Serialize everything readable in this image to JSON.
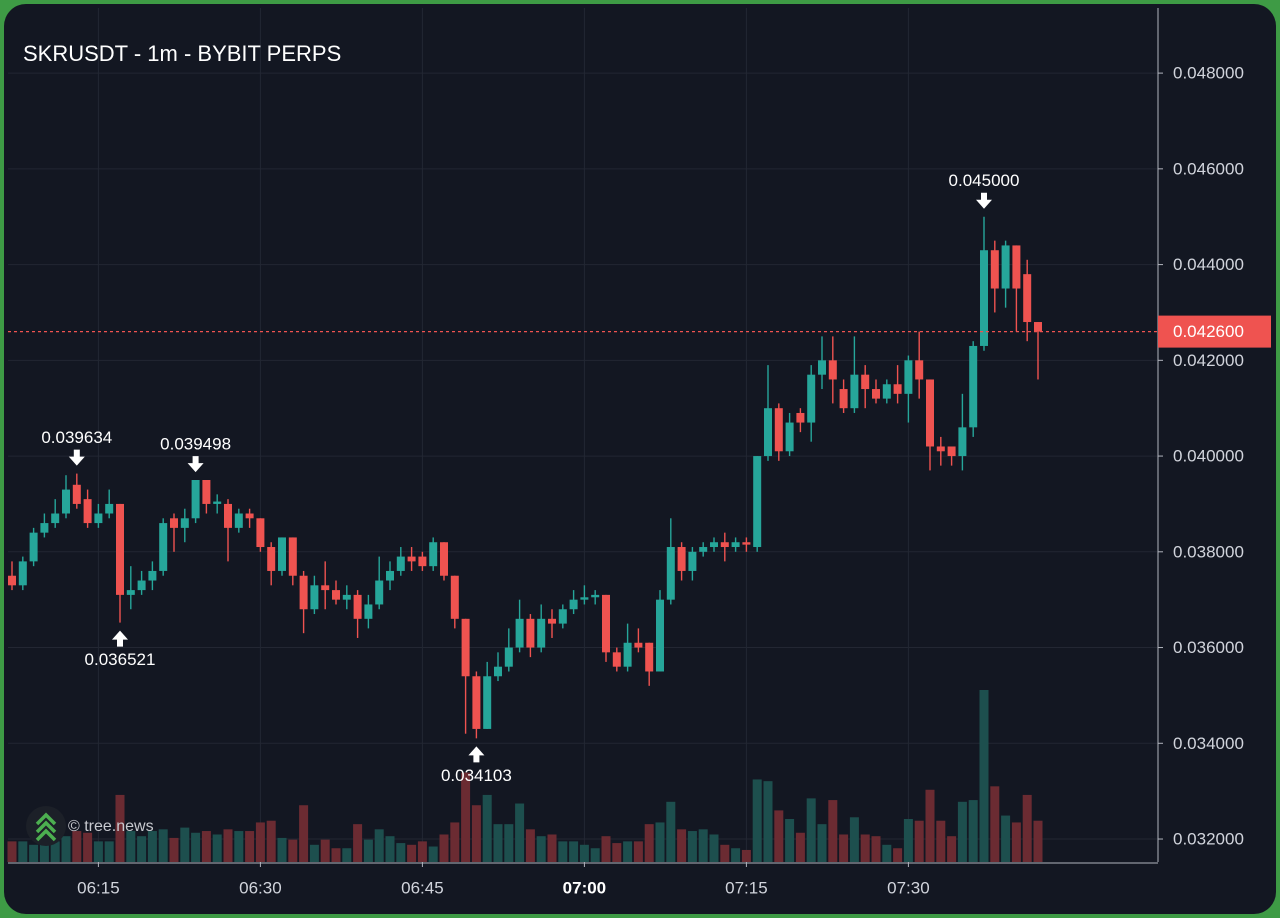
{
  "chart_data": {
    "type": "candlestick",
    "title": "SKRUSDT - 1m - BYBIT PERPS",
    "watermark": "© tree.news",
    "grid": true,
    "up_color": "#26a69a",
    "down_color": "#ef5350",
    "volume_up_color": "#1d4f4e",
    "volume_down_color": "#6b2b32",
    "x": [
      "06:07",
      "06:08",
      "06:09",
      "06:10",
      "06:11",
      "06:12",
      "06:13",
      "06:14",
      "06:15",
      "06:16",
      "06:17",
      "06:18",
      "06:19",
      "06:20",
      "06:21",
      "06:22",
      "06:23",
      "06:24",
      "06:25",
      "06:26",
      "06:27",
      "06:28",
      "06:29",
      "06:30",
      "06:31",
      "06:32",
      "06:33",
      "06:34",
      "06:35",
      "06:36",
      "06:37",
      "06:38",
      "06:39",
      "06:40",
      "06:41",
      "06:42",
      "06:43",
      "06:44",
      "06:45",
      "06:46",
      "06:47",
      "06:48",
      "06:49",
      "06:50",
      "06:51",
      "06:52",
      "06:53",
      "06:54",
      "06:55",
      "06:56",
      "06:57",
      "06:58",
      "06:59",
      "07:00",
      "07:01",
      "07:02",
      "07:03",
      "07:04",
      "07:05",
      "07:06",
      "07:07",
      "07:08",
      "07:09",
      "07:10",
      "07:11",
      "07:12",
      "07:13",
      "07:14",
      "07:15",
      "07:16",
      "07:17",
      "07:18",
      "07:19",
      "07:20",
      "07:21",
      "07:22",
      "07:23",
      "07:24",
      "07:25",
      "07:26",
      "07:27",
      "07:28",
      "07:29",
      "07:30",
      "07:31",
      "07:32",
      "07:33",
      "07:34",
      "07:35",
      "07:36",
      "07:37",
      "07:38",
      "07:39",
      "07:40",
      "07:41",
      "07:42"
    ],
    "open": [
      0.0375,
      0.0373,
      0.0378,
      0.0384,
      0.0386,
      0.0388,
      0.0394,
      0.0391,
      0.0386,
      0.0388,
      0.039,
      0.0371,
      0.0372,
      0.0374,
      0.0376,
      0.0387,
      0.0385,
      0.0387,
      0.0395,
      0.039,
      0.039,
      0.0385,
      0.0388,
      0.0387,
      0.0381,
      0.0376,
      0.0383,
      0.0375,
      0.0368,
      0.0373,
      0.0372,
      0.037,
      0.0371,
      0.0366,
      0.0369,
      0.0374,
      0.0376,
      0.0379,
      0.0379,
      0.0377,
      0.0382,
      0.0375,
      0.0366,
      0.0354,
      0.0343,
      0.0354,
      0.0356,
      0.036,
      0.0366,
      0.036,
      0.0366,
      0.0365,
      0.0368,
      0.037,
      0.03705,
      0.0371,
      0.0359,
      0.0356,
      0.0361,
      0.0361,
      0.0355,
      0.037,
      0.0381,
      0.0376,
      0.038,
      0.0381,
      0.0382,
      0.0381,
      0.0382,
      0.0381,
      0.04,
      0.041,
      0.0401,
      0.0409,
      0.0407,
      0.0417,
      0.042,
      0.0414,
      0.041,
      0.0417,
      0.0414,
      0.0412,
      0.0415,
      0.0413,
      0.042,
      0.0416,
      0.0402,
      0.0402,
      0.04,
      0.0406,
      0.0423,
      0.0443,
      0.0435,
      0.0444,
      0.0438,
      0.0428
    ],
    "high": [
      0.0378,
      0.0379,
      0.0385,
      0.0388,
      0.0391,
      0.0396,
      0.039634,
      0.0393,
      0.039,
      0.0393,
      0.039,
      0.0377,
      0.0376,
      0.0378,
      0.0387,
      0.0388,
      0.0389,
      0.039498,
      0.0395,
      0.0392,
      0.0391,
      0.0389,
      0.0389,
      0.0387,
      0.0382,
      0.0383,
      0.0383,
      0.0376,
      0.0375,
      0.0378,
      0.0374,
      0.0373,
      0.0372,
      0.0371,
      0.0379,
      0.0378,
      0.0381,
      0.0381,
      0.038,
      0.0383,
      0.0382,
      0.0375,
      0.0366,
      0.0355,
      0.0357,
      0.0359,
      0.0364,
      0.037,
      0.0367,
      0.0369,
      0.0368,
      0.0369,
      0.0372,
      0.0373,
      0.0372,
      0.0371,
      0.036,
      0.0365,
      0.0364,
      0.0361,
      0.0372,
      0.0387,
      0.0382,
      0.0381,
      0.0382,
      0.0383,
      0.0384,
      0.0383,
      0.0383,
      0.04,
      0.0419,
      0.0411,
      0.0409,
      0.041,
      0.0419,
      0.0425,
      0.0425,
      0.0416,
      0.0425,
      0.0419,
      0.0416,
      0.0416,
      0.0419,
      0.0421,
      0.0426,
      0.0416,
      0.0404,
      0.0402,
      0.0413,
      0.0424,
      0.045,
      0.0445,
      0.0445,
      0.0444,
      0.0441,
      0.0428
    ],
    "low": [
      0.0372,
      0.0372,
      0.0377,
      0.0383,
      0.0385,
      0.0387,
      0.0389,
      0.0385,
      0.0385,
      0.0387,
      0.036521,
      0.0368,
      0.0371,
      0.0372,
      0.0375,
      0.038,
      0.0382,
      0.0386,
      0.0388,
      0.0388,
      0.0378,
      0.0384,
      0.0385,
      0.038,
      0.0373,
      0.0375,
      0.0373,
      0.0363,
      0.0367,
      0.0368,
      0.0369,
      0.0368,
      0.0362,
      0.0364,
      0.0368,
      0.0372,
      0.0375,
      0.0376,
      0.0376,
      0.0376,
      0.0374,
      0.0364,
      0.0342,
      0.034103,
      0.0343,
      0.0353,
      0.0355,
      0.0359,
      0.0358,
      0.0359,
      0.0362,
      0.0364,
      0.0367,
      0.0369,
      0.0369,
      0.0357,
      0.0355,
      0.0355,
      0.0359,
      0.0352,
      0.0355,
      0.0369,
      0.0374,
      0.0374,
      0.0379,
      0.038,
      0.0378,
      0.038,
      0.038,
      0.038,
      0.0399,
      0.0399,
      0.04,
      0.0405,
      0.0403,
      0.0414,
      0.0411,
      0.0409,
      0.0409,
      0.041,
      0.0411,
      0.0411,
      0.0411,
      0.0407,
      0.0412,
      0.0397,
      0.0398,
      0.0398,
      0.0397,
      0.0404,
      0.0422,
      0.043,
      0.0431,
      0.0426,
      0.0424,
      0.0416
    ],
    "close": [
      0.0373,
      0.0378,
      0.0384,
      0.0386,
      0.0388,
      0.0393,
      0.039,
      0.0386,
      0.0388,
      0.039,
      0.0371,
      0.0372,
      0.0374,
      0.0376,
      0.0386,
      0.0385,
      0.0387,
      0.0395,
      0.039,
      0.03905,
      0.0385,
      0.0388,
      0.0387,
      0.0381,
      0.0376,
      0.0383,
      0.0375,
      0.0368,
      0.0373,
      0.0372,
      0.037,
      0.0371,
      0.0366,
      0.0369,
      0.0374,
      0.0376,
      0.0379,
      0.0378,
      0.0377,
      0.0382,
      0.0375,
      0.0366,
      0.0354,
      0.0343,
      0.0354,
      0.0356,
      0.036,
      0.0366,
      0.036,
      0.0366,
      0.0365,
      0.0368,
      0.037,
      0.03705,
      0.0371,
      0.0359,
      0.0356,
      0.0361,
      0.036,
      0.0355,
      0.037,
      0.0381,
      0.0376,
      0.038,
      0.0381,
      0.0382,
      0.0381,
      0.0382,
      0.03815,
      0.04,
      0.041,
      0.0401,
      0.0407,
      0.0407,
      0.0417,
      0.042,
      0.0416,
      0.041,
      0.0417,
      0.0414,
      0.0412,
      0.0415,
      0.0413,
      0.042,
      0.0416,
      0.0402,
      0.0401,
      0.04,
      0.0406,
      0.0423,
      0.0443,
      0.0435,
      0.0444,
      0.0435,
      0.0428,
      0.0426
    ],
    "volume": [
      12,
      12,
      10,
      10,
      12,
      15,
      18,
      17,
      12,
      12,
      39,
      18,
      15,
      18,
      19,
      14,
      20,
      17,
      18,
      16,
      19,
      18,
      18,
      23,
      24,
      14,
      13,
      33,
      10,
      13,
      8,
      8,
      22,
      13,
      19,
      15,
      11,
      10,
      12,
      9,
      16,
      23,
      52,
      33,
      39,
      22,
      22,
      34,
      19,
      15,
      16,
      12,
      12,
      10,
      8,
      15,
      11,
      12,
      12,
      22,
      23,
      35,
      19,
      18,
      19,
      16,
      10,
      8,
      7,
      48,
      47,
      30,
      25,
      17,
      37,
      22,
      36,
      16,
      26,
      16,
      15,
      10,
      8,
      25,
      24,
      42,
      24,
      15,
      35,
      36,
      100,
      44,
      27,
      23,
      39,
      24
    ],
    "vlim": [
      0,
      100
    ],
    "ylim": [
      0.03152,
      0.04936
    ],
    "yticks": [
      {
        "value": 0.032,
        "label": "0.032000"
      },
      {
        "value": 0.034,
        "label": "0.034000"
      },
      {
        "value": 0.036,
        "label": "0.036000"
      },
      {
        "value": 0.038,
        "label": "0.038000"
      },
      {
        "value": 0.04,
        "label": "0.040000"
      },
      {
        "value": 0.042,
        "label": "0.042000"
      },
      {
        "value": 0.044,
        "label": "0.044000"
      },
      {
        "value": 0.046,
        "label": "0.046000"
      },
      {
        "value": 0.048,
        "label": "0.048000"
      }
    ],
    "xticks": [
      "06:15",
      "06:30",
      "06:45",
      "07:00",
      "07:15",
      "07:30"
    ],
    "annotations": [
      {
        "value": 0.039634,
        "label": "0.039634"
      },
      {
        "value": 0.036521,
        "label": "0.036521"
      },
      {
        "value": 0.039498,
        "label": "0.039498"
      },
      {
        "value": 0.034103,
        "label": "0.034103"
      },
      {
        "value": 0.045,
        "label": "0.045000"
      }
    ],
    "last_price": {
      "value": 0.0426,
      "label": "0.042600"
    }
  }
}
